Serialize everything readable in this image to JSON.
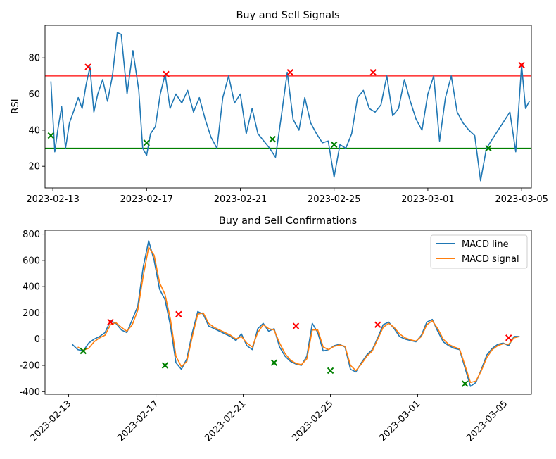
{
  "chart_data": [
    {
      "type": "line",
      "title": "Buy and Sell Signals",
      "xlabel": "",
      "ylabel": "RSI",
      "xlim": [
        "2023-02-12T16:00",
        "2023-03-05T10:00"
      ],
      "ylim": [
        8,
        98
      ],
      "x_ticks": [
        "2023-02-13",
        "2023-02-17",
        "2023-02-21",
        "2023-02-25",
        "2023-03-01",
        "2023-03-05"
      ],
      "y_ticks": [
        20,
        40,
        60,
        80
      ],
      "grid": false,
      "colors": {
        "rsi": "#1f77b4",
        "sell_line": "#ff0000",
        "buy_line": "#008000",
        "sell_marker": "#ff0000",
        "buy_marker": "#008000"
      },
      "hlines": [
        {
          "y": 70,
          "color": "#ff0000"
        },
        {
          "y": 30,
          "color": "#008000"
        }
      ],
      "series": [
        {
          "x": [
            "2023-02-12T22:00",
            "2023-02-13T02:00",
            "2023-02-13T05:00",
            "2023-02-13T09:00",
            "2023-02-13T13:00",
            "2023-02-13T17:00",
            "2023-02-13T21:00",
            "2023-02-14T02:00",
            "2023-02-14T06:00",
            "2023-02-14T10:00",
            "2023-02-14T14:00",
            "2023-02-14T18:00",
            "2023-02-14T22:00",
            "2023-02-15T03:00",
            "2023-02-15T08:00",
            "2023-02-15T13:00",
            "2023-02-15T18:00",
            "2023-02-15T22:00",
            "2023-02-16T04:00",
            "2023-02-16T10:00",
            "2023-02-16T16:00",
            "2023-02-16T20:00",
            "2023-02-17T00:00",
            "2023-02-17T04:00",
            "2023-02-17T09:00",
            "2023-02-17T14:00",
            "2023-02-17T19:00",
            "2023-02-18T00:00",
            "2023-02-18T06:00",
            "2023-02-18T12:00",
            "2023-02-18T18:00",
            "2023-02-19T00:00",
            "2023-02-19T06:00",
            "2023-02-19T12:00",
            "2023-02-19T18:00",
            "2023-02-20T00:00",
            "2023-02-20T06:00",
            "2023-02-20T12:00",
            "2023-02-20T18:00",
            "2023-02-21T00:00",
            "2023-02-21T06:00",
            "2023-02-21T12:00",
            "2023-02-21T18:00",
            "2023-02-22T00:00",
            "2023-02-22T06:00",
            "2023-02-22T12:00",
            "2023-02-22T18:00",
            "2023-02-23T00:00",
            "2023-02-23T06:00",
            "2023-02-23T12:00",
            "2023-02-23T18:00",
            "2023-02-24T00:00",
            "2023-02-24T06:00",
            "2023-02-24T12:00",
            "2023-02-24T18:00",
            "2023-02-25T00:00",
            "2023-02-25T06:00",
            "2023-02-25T12:00",
            "2023-02-25T18:00",
            "2023-02-26T00:00",
            "2023-02-26T06:00",
            "2023-02-26T12:00",
            "2023-02-26T18:00",
            "2023-02-27T00:00",
            "2023-02-27T06:00",
            "2023-02-27T12:00",
            "2023-02-27T18:00",
            "2023-02-28T00:00",
            "2023-02-28T06:00",
            "2023-02-28T12:00",
            "2023-02-28T18:00",
            "2023-03-01T00:00",
            "2023-03-01T06:00",
            "2023-03-01T12:00",
            "2023-03-01T18:00",
            "2023-03-02T00:00",
            "2023-03-02T06:00",
            "2023-03-02T12:00",
            "2023-03-02T18:00",
            "2023-03-03T00:00",
            "2023-03-03T06:00",
            "2023-03-03T12:00",
            "2023-03-03T18:00",
            "2023-03-04T00:00",
            "2023-03-04T06:00",
            "2023-03-04T12:00",
            "2023-03-04T18:00",
            "2023-03-05T00:00",
            "2023-03-05T04:00",
            "2023-03-05T08:00"
          ],
          "values": [
            67,
            28,
            40,
            53,
            30,
            44,
            50,
            58,
            52,
            65,
            75,
            50,
            60,
            68,
            56,
            70,
            94,
            93,
            60,
            84,
            62,
            30,
            26,
            38,
            42,
            60,
            71,
            52,
            60,
            55,
            62,
            50,
            58,
            46,
            36,
            30,
            58,
            70,
            55,
            60,
            38,
            52,
            38,
            34,
            30,
            25,
            48,
            72,
            46,
            40,
            58,
            44,
            38,
            33,
            34,
            14,
            32,
            30,
            38,
            58,
            62,
            52,
            50,
            54,
            70,
            48,
            52,
            68,
            56,
            46,
            40,
            60,
            70,
            34,
            58,
            70,
            50,
            44,
            40,
            37,
            12,
            30,
            35,
            40,
            45,
            50,
            28,
            76,
            52,
            56
          ]
        }
      ],
      "sell_markers": [
        {
          "x": "2023-02-14T12:00",
          "y": 75
        },
        {
          "x": "2023-02-17T20:00",
          "y": 71
        },
        {
          "x": "2023-02-23T03:00",
          "y": 72
        },
        {
          "x": "2023-02-26T16:00",
          "y": 72
        },
        {
          "x": "2023-03-05T00:00",
          "y": 76
        }
      ],
      "buy_markers": [
        {
          "x": "2023-02-12T22:00",
          "y": 37
        },
        {
          "x": "2023-02-17T00:00",
          "y": 33
        },
        {
          "x": "2023-02-22T09:00",
          "y": 35
        },
        {
          "x": "2023-02-25T00:00",
          "y": 32
        },
        {
          "x": "2023-03-03T14:00",
          "y": 30
        }
      ]
    },
    {
      "type": "line",
      "title": "Buy and Sell Confirmations",
      "xlabel": "",
      "ylabel": "",
      "xlim": [
        "2023-02-11T22:00",
        "2023-03-06T05:00"
      ],
      "ylim": [
        -420,
        830
      ],
      "x_ticks": [
        "2023-02-13",
        "2023-02-17",
        "2023-02-21",
        "2023-02-25",
        "2023-03-01",
        "2023-03-05"
      ],
      "y_ticks": [
        -400,
        -200,
        0,
        200,
        400,
        600,
        800
      ],
      "grid": false,
      "legend_placement": "top-right",
      "series": [
        {
          "name": "MACD line",
          "color": "#1f77b4",
          "x": [
            "2023-02-13T04:00",
            "2023-02-13T10:00",
            "2023-02-13T16:00",
            "2023-02-13T22:00",
            "2023-02-14T04:00",
            "2023-02-14T10:00",
            "2023-02-14T16:00",
            "2023-02-14T22:00",
            "2023-02-15T04:00",
            "2023-02-15T10:00",
            "2023-02-15T16:00",
            "2023-02-15T22:00",
            "2023-02-16T04:00",
            "2023-02-16T10:00",
            "2023-02-16T16:00",
            "2023-02-16T22:00",
            "2023-02-17T04:00",
            "2023-02-17T10:00",
            "2023-02-17T16:00",
            "2023-02-17T22:00",
            "2023-02-18T04:00",
            "2023-02-18T10:00",
            "2023-02-18T16:00",
            "2023-02-18T22:00",
            "2023-02-19T04:00",
            "2023-02-19T10:00",
            "2023-02-19T16:00",
            "2023-02-19T22:00",
            "2023-02-20T04:00",
            "2023-02-20T10:00",
            "2023-02-20T16:00",
            "2023-02-20T22:00",
            "2023-02-21T04:00",
            "2023-02-21T10:00",
            "2023-02-21T16:00",
            "2023-02-21T22:00",
            "2023-02-22T04:00",
            "2023-02-22T10:00",
            "2023-02-22T16:00",
            "2023-02-22T22:00",
            "2023-02-23T04:00",
            "2023-02-23T10:00",
            "2023-02-23T16:00",
            "2023-02-23T22:00",
            "2023-02-24T04:00",
            "2023-02-24T10:00",
            "2023-02-24T16:00",
            "2023-02-24T22:00",
            "2023-02-25T04:00",
            "2023-02-25T10:00",
            "2023-02-25T16:00",
            "2023-02-25T22:00",
            "2023-02-26T04:00",
            "2023-02-26T10:00",
            "2023-02-26T16:00",
            "2023-02-26T22:00",
            "2023-02-27T04:00",
            "2023-02-27T10:00",
            "2023-02-27T16:00",
            "2023-02-27T22:00",
            "2023-02-28T04:00",
            "2023-02-28T10:00",
            "2023-02-28T16:00",
            "2023-02-28T22:00",
            "2023-03-01T04:00",
            "2023-03-01T10:00",
            "2023-03-01T16:00",
            "2023-03-01T22:00",
            "2023-03-02T04:00",
            "2023-03-02T10:00",
            "2023-03-02T16:00",
            "2023-03-02T22:00",
            "2023-03-03T04:00",
            "2023-03-03T10:00",
            "2023-03-03T16:00",
            "2023-03-03T22:00",
            "2023-03-04T04:00",
            "2023-03-04T10:00",
            "2023-03-04T16:00",
            "2023-03-04T22:00",
            "2023-03-05T04:00",
            "2023-03-05T10:00",
            "2023-03-05T16:00"
          ],
          "values": [
            -40,
            -80,
            -90,
            -30,
            0,
            20,
            50,
            140,
            120,
            70,
            50,
            150,
            250,
            550,
            750,
            600,
            380,
            300,
            100,
            -180,
            -230,
            -150,
            50,
            210,
            190,
            100,
            80,
            60,
            40,
            20,
            -10,
            40,
            -50,
            -80,
            80,
            120,
            60,
            80,
            -60,
            -130,
            -170,
            -190,
            -200,
            -130,
            120,
            50,
            -90,
            -80,
            -50,
            -40,
            -60,
            -230,
            -250,
            -180,
            -120,
            -80,
            10,
            110,
            130,
            80,
            20,
            0,
            -10,
            -20,
            30,
            130,
            150,
            60,
            -20,
            -50,
            -70,
            -80,
            -220,
            -360,
            -330,
            -230,
            -120,
            -70,
            -40,
            -30,
            -50,
            20,
            20
          ]
        },
        {
          "name": "MACD signal",
          "color": "#ff7f0e",
          "x": [
            "2023-02-13T10:00",
            "2023-02-13T16:00",
            "2023-02-13T22:00",
            "2023-02-14T04:00",
            "2023-02-14T10:00",
            "2023-02-14T16:00",
            "2023-02-14T22:00",
            "2023-02-15T04:00",
            "2023-02-15T10:00",
            "2023-02-15T16:00",
            "2023-02-15T22:00",
            "2023-02-16T04:00",
            "2023-02-16T10:00",
            "2023-02-16T16:00",
            "2023-02-16T22:00",
            "2023-02-17T04:00",
            "2023-02-17T10:00",
            "2023-02-17T16:00",
            "2023-02-17T22:00",
            "2023-02-18T04:00",
            "2023-02-18T10:00",
            "2023-02-18T16:00",
            "2023-02-18T22:00",
            "2023-02-19T04:00",
            "2023-02-19T10:00",
            "2023-02-19T16:00",
            "2023-02-19T22:00",
            "2023-02-20T04:00",
            "2023-02-20T10:00",
            "2023-02-20T16:00",
            "2023-02-20T22:00",
            "2023-02-21T04:00",
            "2023-02-21T10:00",
            "2023-02-21T16:00",
            "2023-02-21T22:00",
            "2023-02-22T04:00",
            "2023-02-22T10:00",
            "2023-02-22T16:00",
            "2023-02-22T22:00",
            "2023-02-23T04:00",
            "2023-02-23T10:00",
            "2023-02-23T16:00",
            "2023-02-23T22:00",
            "2023-02-24T04:00",
            "2023-02-24T10:00",
            "2023-02-24T16:00",
            "2023-02-24T22:00",
            "2023-02-25T04:00",
            "2023-02-25T10:00",
            "2023-02-25T16:00",
            "2023-02-25T22:00",
            "2023-02-26T04:00",
            "2023-02-26T10:00",
            "2023-02-26T16:00",
            "2023-02-26T22:00",
            "2023-02-27T04:00",
            "2023-02-27T10:00",
            "2023-02-27T16:00",
            "2023-02-27T22:00",
            "2023-02-28T04:00",
            "2023-02-28T10:00",
            "2023-02-28T16:00",
            "2023-02-28T22:00",
            "2023-03-01T04:00",
            "2023-03-01T10:00",
            "2023-03-01T16:00",
            "2023-03-01T22:00",
            "2023-03-02T04:00",
            "2023-03-02T10:00",
            "2023-03-02T16:00",
            "2023-03-02T22:00",
            "2023-03-03T04:00",
            "2023-03-03T10:00",
            "2023-03-03T16:00",
            "2023-03-03T22:00",
            "2023-03-04T04:00",
            "2023-03-04T10:00",
            "2023-03-04T16:00",
            "2023-03-04T22:00",
            "2023-03-05T04:00",
            "2023-03-05T10:00",
            "2023-03-05T16:00"
          ],
          "values": [
            -60,
            -85,
            -70,
            -20,
            10,
            30,
            110,
            125,
            90,
            60,
            110,
            220,
            480,
            700,
            640,
            430,
            340,
            150,
            -130,
            -210,
            -170,
            20,
            190,
            200,
            120,
            90,
            70,
            50,
            30,
            0,
            20,
            -30,
            -60,
            50,
            110,
            80,
            70,
            -30,
            -110,
            -160,
            -185,
            -195,
            -150,
            70,
            70,
            -60,
            -80,
            -55,
            -45,
            -55,
            -200,
            -240,
            -190,
            -130,
            -90,
            0,
            90,
            120,
            90,
            40,
            10,
            -5,
            -15,
            20,
            110,
            140,
            80,
            0,
            -40,
            -60,
            -75,
            -200,
            -330,
            -320,
            -240,
            -140,
            -80,
            -50,
            -35,
            -40,
            10,
            20
          ]
        }
      ],
      "sell_markers": [
        {
          "x": "2023-02-14T22:00",
          "y": 130
        },
        {
          "x": "2023-02-18T01:00",
          "y": 190
        },
        {
          "x": "2023-02-23T10:00",
          "y": 100
        },
        {
          "x": "2023-02-27T04:00",
          "y": 110
        },
        {
          "x": "2023-03-05T04:00",
          "y": 10
        }
      ],
      "buy_markers": [
        {
          "x": "2023-02-13T16:00",
          "y": -90
        },
        {
          "x": "2023-02-17T10:00",
          "y": -200
        },
        {
          "x": "2023-02-22T10:00",
          "y": -180
        },
        {
          "x": "2023-02-25T00:00",
          "y": -240
        },
        {
          "x": "2023-03-03T04:00",
          "y": -340
        }
      ]
    }
  ]
}
